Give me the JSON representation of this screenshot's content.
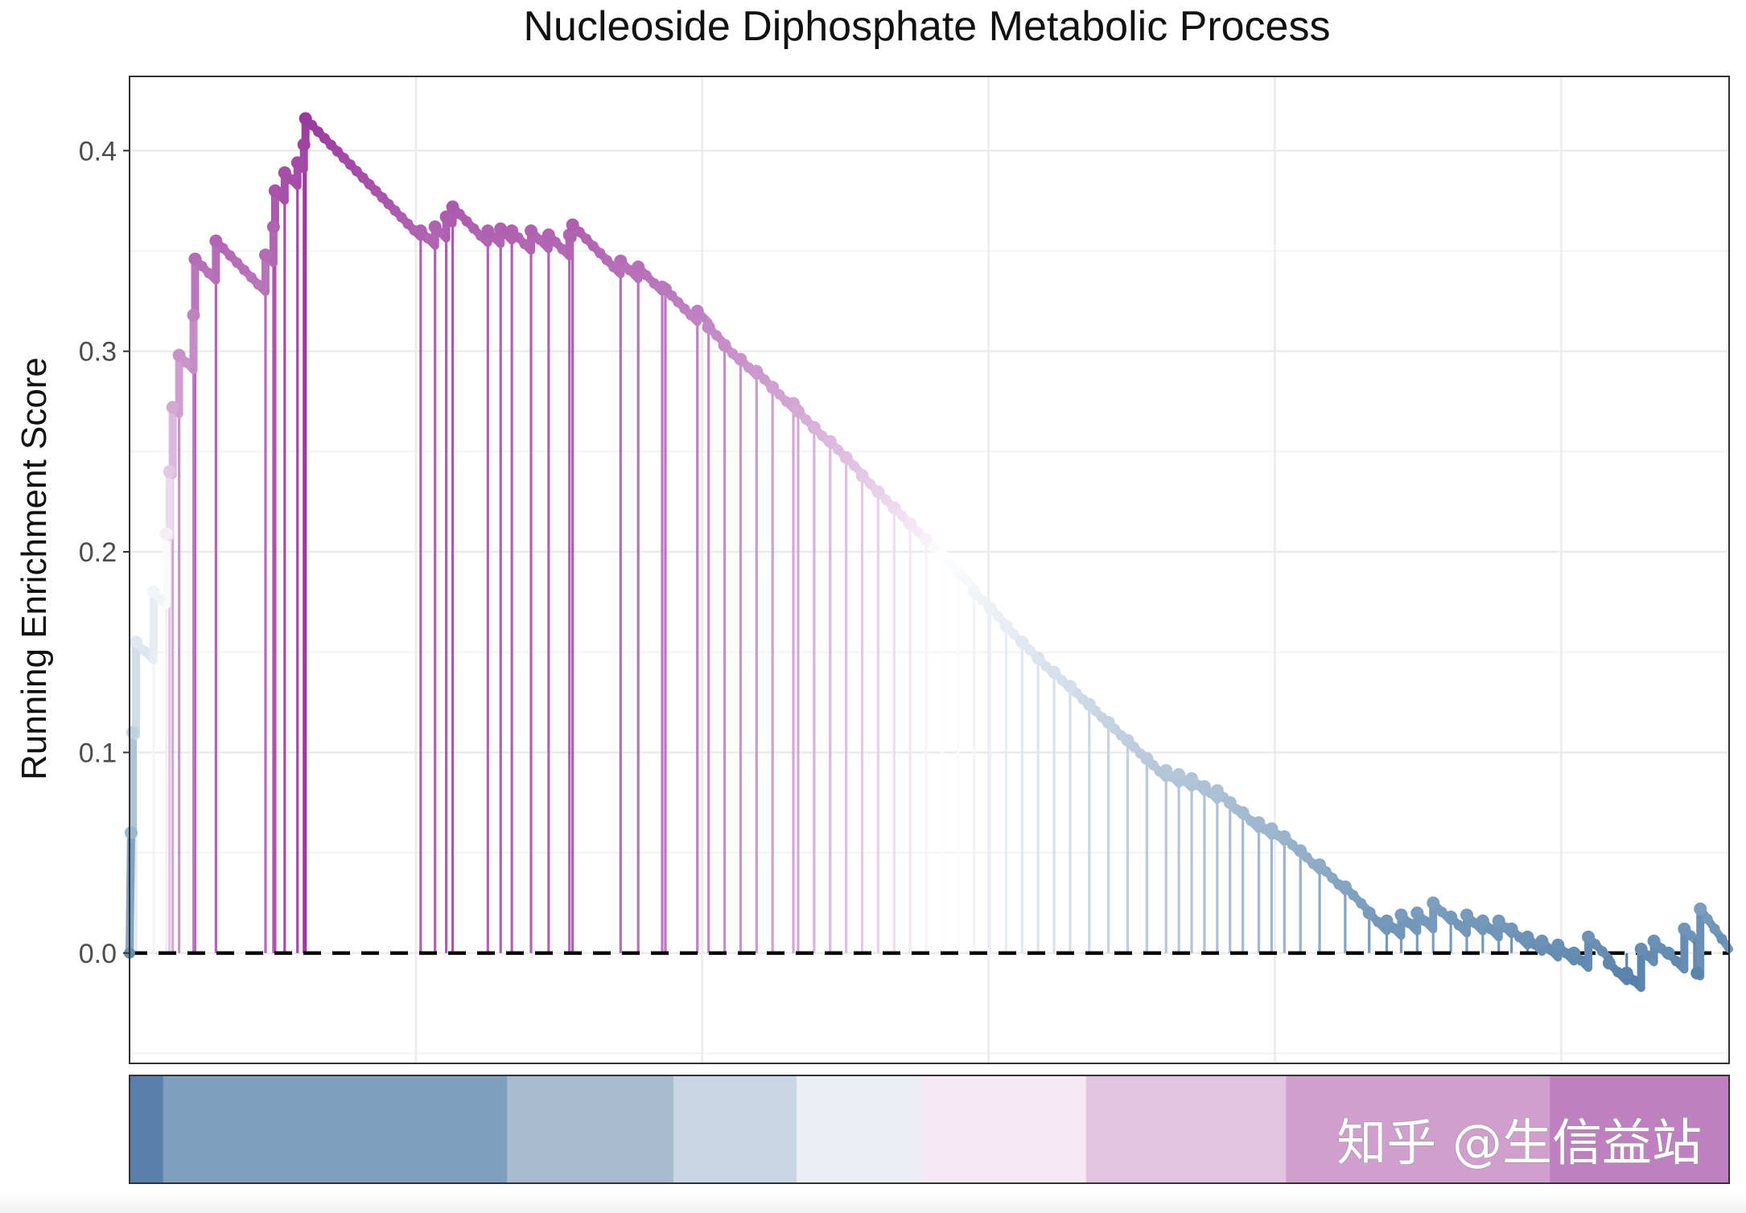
{
  "chart_data": {
    "type": "line",
    "title": "Nucleoside Diphosphate Metabolic Process",
    "xlabel": "",
    "ylabel": "Running Enrichment Score",
    "xlim": [
      0,
      1000
    ],
    "ylim": [
      -0.055,
      0.437
    ],
    "y_ticks": [
      0.0,
      0.1,
      0.2,
      0.3,
      0.4
    ],
    "y_tick_labels": [
      "0.0",
      "0.1",
      "0.2",
      "0.3",
      "0.4"
    ],
    "x_gridlines": [
      179,
      358,
      537,
      716,
      895
    ],
    "grid": true,
    "zero_line": "dashed",
    "point_color_scale": [
      "#3a6c9c",
      "#ffffff",
      "#9b3a9e"
    ],
    "hits": [
      {
        "x": 1,
        "y": 0.06
      },
      {
        "x": 2,
        "y": 0.11
      },
      {
        "x": 4,
        "y": 0.155
      },
      {
        "x": 15,
        "y": 0.18
      },
      {
        "x": 23,
        "y": 0.209
      },
      {
        "x": 25,
        "y": 0.24
      },
      {
        "x": 27,
        "y": 0.272
      },
      {
        "x": 31,
        "y": 0.298
      },
      {
        "x": 40,
        "y": 0.318
      },
      {
        "x": 41,
        "y": 0.346
      },
      {
        "x": 54,
        "y": 0.355
      },
      {
        "x": 85,
        "y": 0.348
      },
      {
        "x": 90,
        "y": 0.362
      },
      {
        "x": 91,
        "y": 0.38
      },
      {
        "x": 97,
        "y": 0.389
      },
      {
        "x": 105,
        "y": 0.394
      },
      {
        "x": 109,
        "y": 0.403
      },
      {
        "x": 110,
        "y": 0.416
      },
      {
        "x": 182,
        "y": 0.36
      },
      {
        "x": 191,
        "y": 0.362
      },
      {
        "x": 198,
        "y": 0.367
      },
      {
        "x": 202,
        "y": 0.372
      },
      {
        "x": 224,
        "y": 0.36
      },
      {
        "x": 232,
        "y": 0.361
      },
      {
        "x": 239,
        "y": 0.36
      },
      {
        "x": 251,
        "y": 0.36
      },
      {
        "x": 262,
        "y": 0.358
      },
      {
        "x": 275,
        "y": 0.358
      },
      {
        "x": 277,
        "y": 0.363
      },
      {
        "x": 307,
        "y": 0.345
      },
      {
        "x": 318,
        "y": 0.342
      },
      {
        "x": 333,
        "y": 0.332
      },
      {
        "x": 335,
        "y": 0.331
      },
      {
        "x": 355,
        "y": 0.32
      },
      {
        "x": 362,
        "y": 0.312
      },
      {
        "x": 372,
        "y": 0.303
      },
      {
        "x": 382,
        "y": 0.296
      },
      {
        "x": 392,
        "y": 0.29
      },
      {
        "x": 402,
        "y": 0.282
      },
      {
        "x": 415,
        "y": 0.274
      },
      {
        "x": 418,
        "y": 0.27
      },
      {
        "x": 428,
        "y": 0.262
      },
      {
        "x": 438,
        "y": 0.255
      },
      {
        "x": 448,
        "y": 0.247
      },
      {
        "x": 458,
        "y": 0.238
      },
      {
        "x": 468,
        "y": 0.23
      },
      {
        "x": 478,
        "y": 0.222
      },
      {
        "x": 488,
        "y": 0.214
      },
      {
        "x": 498,
        "y": 0.206
      },
      {
        "x": 508,
        "y": 0.198
      },
      {
        "x": 518,
        "y": 0.19
      },
      {
        "x": 528,
        "y": 0.18
      },
      {
        "x": 538,
        "y": 0.172
      },
      {
        "x": 548,
        "y": 0.163
      },
      {
        "x": 558,
        "y": 0.155
      },
      {
        "x": 568,
        "y": 0.147
      },
      {
        "x": 578,
        "y": 0.14
      },
      {
        "x": 588,
        "y": 0.133
      },
      {
        "x": 600,
        "y": 0.124
      },
      {
        "x": 612,
        "y": 0.115
      },
      {
        "x": 624,
        "y": 0.106
      },
      {
        "x": 636,
        "y": 0.097
      },
      {
        "x": 648,
        "y": 0.091
      },
      {
        "x": 656,
        "y": 0.089
      },
      {
        "x": 664,
        "y": 0.087
      },
      {
        "x": 672,
        "y": 0.083
      },
      {
        "x": 680,
        "y": 0.081
      },
      {
        "x": 688,
        "y": 0.075
      },
      {
        "x": 696,
        "y": 0.07
      },
      {
        "x": 706,
        "y": 0.065
      },
      {
        "x": 714,
        "y": 0.062
      },
      {
        "x": 722,
        "y": 0.058
      },
      {
        "x": 732,
        "y": 0.051
      },
      {
        "x": 744,
        "y": 0.044
      },
      {
        "x": 760,
        "y": 0.033
      },
      {
        "x": 775,
        "y": 0.02
      },
      {
        "x": 786,
        "y": 0.016
      },
      {
        "x": 795,
        "y": 0.019
      },
      {
        "x": 805,
        "y": 0.02
      },
      {
        "x": 815,
        "y": 0.025
      },
      {
        "x": 826,
        "y": 0.018
      },
      {
        "x": 836,
        "y": 0.019
      },
      {
        "x": 846,
        "y": 0.016
      },
      {
        "x": 856,
        "y": 0.016
      },
      {
        "x": 864,
        "y": 0.012
      },
      {
        "x": 874,
        "y": 0.008
      },
      {
        "x": 883,
        "y": 0.006
      },
      {
        "x": 893,
        "y": 0.004
      },
      {
        "x": 903,
        "y": 0.0
      },
      {
        "x": 912,
        "y": 0.008
      },
      {
        "x": 925,
        "y": -0.005
      },
      {
        "x": 936,
        "y": -0.01
      },
      {
        "x": 945,
        "y": 0.002
      },
      {
        "x": 953,
        "y": 0.006
      },
      {
        "x": 962,
        "y": 0.0
      },
      {
        "x": 972,
        "y": 0.012
      },
      {
        "x": 980,
        "y": -0.01
      },
      {
        "x": 982,
        "y": 0.022
      }
    ],
    "end": {
      "x": 1000,
      "y": 0.002
    },
    "rank_bar": {
      "boundaries": [
        0,
        21,
        236,
        340,
        417,
        495,
        598,
        723,
        888,
        1000
      ],
      "colors": [
        "#5b7fab",
        "#809fbf",
        "#a7bcd1",
        "#c9d6e3",
        "#ebeff4",
        "#f5eaf3",
        "#e2c4e0",
        "#d09fce",
        "#bf80bf"
      ]
    }
  },
  "watermark": "知乎 @生信益站"
}
